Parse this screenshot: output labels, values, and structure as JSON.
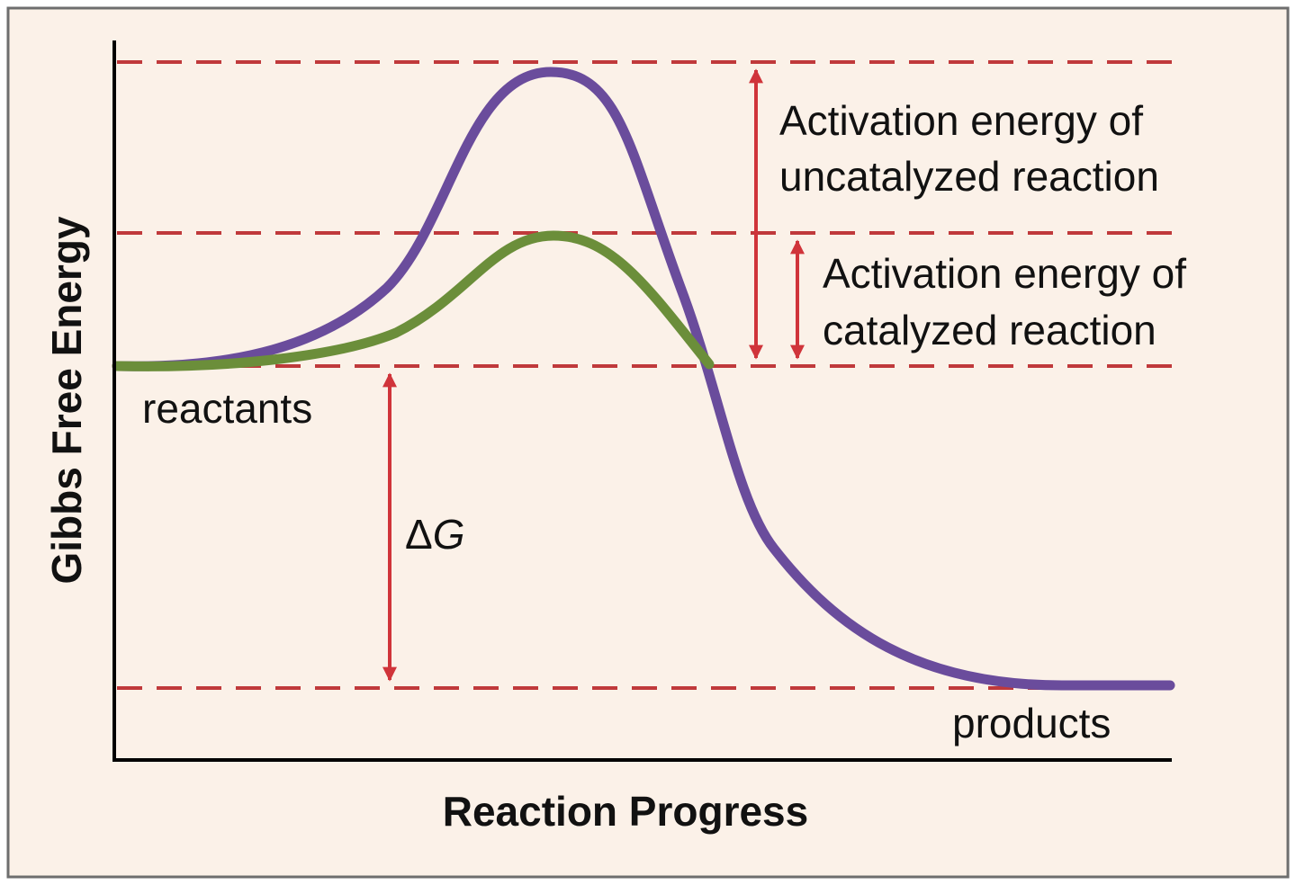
{
  "diagram": {
    "y_axis_label": "Gibbs Free Energy",
    "x_axis_label": "Reaction Progress",
    "reactants_label": "reactants",
    "products_label": "products",
    "delta_g_symbol": "Δ",
    "delta_g_letter": "G",
    "uncatalyzed_label_line1": "Activation energy of",
    "uncatalyzed_label_line2": "uncatalyzed reaction",
    "catalyzed_label_line1": "Activation energy of",
    "catalyzed_label_line2": "catalyzed reaction"
  },
  "colors": {
    "background": "#fbf1e8",
    "uncatalyzed_curve": "#6a4c9c",
    "catalyzed_curve": "#6b8e3a",
    "dashed_guides": "#c0393b",
    "arrows": "#d0343a",
    "frame": "#6e6e6e"
  }
}
